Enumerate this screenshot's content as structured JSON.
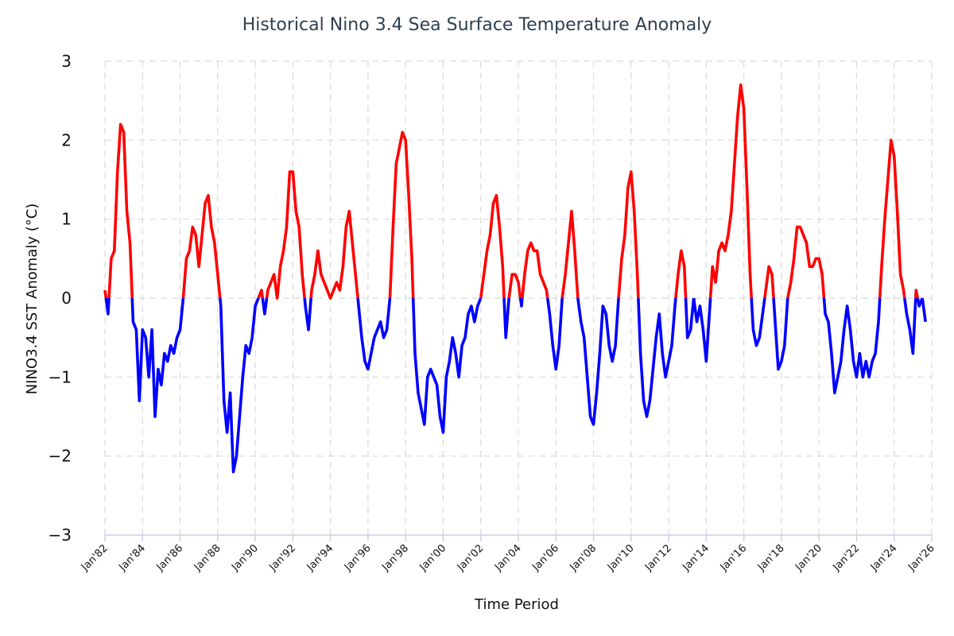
{
  "chart_data": {
    "type": "line",
    "title": "Historical Nino 3.4 Sea Surface Temperature Anomaly",
    "xlabel": "Time Period",
    "ylabel": "NINO3.4 SST Anomaly (°C)",
    "ylim": [
      -3,
      3
    ],
    "xlim": [
      "1982-01",
      "2026-01"
    ],
    "yticks": [
      3,
      2,
      1,
      0,
      -1,
      -2,
      -3
    ],
    "ytick_labels": [
      "3",
      "2",
      "1",
      "0",
      "−1",
      "−2",
      "−3"
    ],
    "xticks": [
      "1982-01",
      "1984-01",
      "1986-01",
      "1988-01",
      "1990-01",
      "1992-01",
      "1994-01",
      "1996-01",
      "1998-01",
      "2000-01",
      "2002-01",
      "2004-01",
      "2006-01",
      "2008-01",
      "2010-01",
      "2012-01",
      "2014-01",
      "2016-01",
      "2018-01",
      "2020-01",
      "2022-01",
      "2024-01",
      "2026-01"
    ],
    "xtick_labels": [
      "Jan'82",
      "Jan'84",
      "Jan'86",
      "Jan'88",
      "Jan'90",
      "Jan'92",
      "Jan'94",
      "Jan'96",
      "Jan'98",
      "Jan'00",
      "Jan'02",
      "Jan'04",
      "Jan'06",
      "Jan'08",
      "Jan'10",
      "Jan'12",
      "Jan'14",
      "Jan'16",
      "Jan'18",
      "Jan'20",
      "Jan'22",
      "Jan'24",
      "Jan'26"
    ],
    "grid": true,
    "positive_color": "#ff0000",
    "negative_color": "#0000ff",
    "points": [
      [
        "1982-01",
        0.1
      ],
      [
        "1982-03",
        -0.2
      ],
      [
        "1982-05",
        0.5
      ],
      [
        "1982-07",
        0.6
      ],
      [
        "1982-09",
        1.6
      ],
      [
        "1982-11",
        2.2
      ],
      [
        "1983-01",
        2.1
      ],
      [
        "1983-03",
        1.1
      ],
      [
        "1983-05",
        0.7
      ],
      [
        "1983-07",
        -0.3
      ],
      [
        "1983-09",
        -0.4
      ],
      [
        "1983-11",
        -1.3
      ],
      [
        "1984-01",
        -0.4
      ],
      [
        "1984-03",
        -0.5
      ],
      [
        "1984-05",
        -1.0
      ],
      [
        "1984-07",
        -0.4
      ],
      [
        "1984-09",
        -1.5
      ],
      [
        "1984-11",
        -0.9
      ],
      [
        "1985-01",
        -1.1
      ],
      [
        "1985-03",
        -0.7
      ],
      [
        "1985-05",
        -0.8
      ],
      [
        "1985-07",
        -0.6
      ],
      [
        "1985-09",
        -0.7
      ],
      [
        "1985-11",
        -0.5
      ],
      [
        "1986-01",
        -0.4
      ],
      [
        "1986-03",
        0.0
      ],
      [
        "1986-05",
        0.5
      ],
      [
        "1986-07",
        0.6
      ],
      [
        "1986-09",
        0.9
      ],
      [
        "1986-11",
        0.8
      ],
      [
        "1987-01",
        0.4
      ],
      [
        "1987-03",
        0.8
      ],
      [
        "1987-05",
        1.2
      ],
      [
        "1987-07",
        1.3
      ],
      [
        "1987-09",
        0.9
      ],
      [
        "1987-11",
        0.7
      ],
      [
        "1988-01",
        0.3
      ],
      [
        "1988-03",
        -0.1
      ],
      [
        "1988-05",
        -1.3
      ],
      [
        "1988-07",
        -1.7
      ],
      [
        "1988-09",
        -1.2
      ],
      [
        "1988-11",
        -2.2
      ],
      [
        "1989-01",
        -2.0
      ],
      [
        "1989-03",
        -1.5
      ],
      [
        "1989-05",
        -1.0
      ],
      [
        "1989-07",
        -0.6
      ],
      [
        "1989-09",
        -0.7
      ],
      [
        "1989-11",
        -0.5
      ],
      [
        "1990-01",
        -0.1
      ],
      [
        "1990-03",
        0.0
      ],
      [
        "1990-05",
        0.1
      ],
      [
        "1990-07",
        -0.2
      ],
      [
        "1990-09",
        0.1
      ],
      [
        "1990-11",
        0.2
      ],
      [
        "1991-01",
        0.3
      ],
      [
        "1991-03",
        0.0
      ],
      [
        "1991-05",
        0.4
      ],
      [
        "1991-07",
        0.6
      ],
      [
        "1991-09",
        0.9
      ],
      [
        "1991-11",
        1.6
      ],
      [
        "1992-01",
        1.6
      ],
      [
        "1992-03",
        1.1
      ],
      [
        "1992-05",
        0.9
      ],
      [
        "1992-07",
        0.3
      ],
      [
        "1992-09",
        -0.1
      ],
      [
        "1992-11",
        -0.4
      ],
      [
        "1993-01",
        0.1
      ],
      [
        "1993-03",
        0.3
      ],
      [
        "1993-05",
        0.6
      ],
      [
        "1993-07",
        0.3
      ],
      [
        "1993-09",
        0.2
      ],
      [
        "1993-11",
        0.1
      ],
      [
        "1994-01",
        0.0
      ],
      [
        "1994-03",
        0.1
      ],
      [
        "1994-05",
        0.2
      ],
      [
        "1994-07",
        0.1
      ],
      [
        "1994-09",
        0.4
      ],
      [
        "1994-11",
        0.9
      ],
      [
        "1995-01",
        1.1
      ],
      [
        "1995-03",
        0.7
      ],
      [
        "1995-05",
        0.3
      ],
      [
        "1995-07",
        -0.1
      ],
      [
        "1995-09",
        -0.5
      ],
      [
        "1995-11",
        -0.8
      ],
      [
        "1996-01",
        -0.9
      ],
      [
        "1996-03",
        -0.7
      ],
      [
        "1996-05",
        -0.5
      ],
      [
        "1996-07",
        -0.4
      ],
      [
        "1996-09",
        -0.3
      ],
      [
        "1996-11",
        -0.5
      ],
      [
        "1997-01",
        -0.4
      ],
      [
        "1997-03",
        0.0
      ],
      [
        "1997-05",
        0.9
      ],
      [
        "1997-07",
        1.7
      ],
      [
        "1997-09",
        1.9
      ],
      [
        "1997-11",
        2.1
      ],
      [
        "1998-01",
        2.0
      ],
      [
        "1998-03",
        1.3
      ],
      [
        "1998-05",
        0.5
      ],
      [
        "1998-07",
        -0.7
      ],
      [
        "1998-09",
        -1.2
      ],
      [
        "1998-11",
        -1.4
      ],
      [
        "1999-01",
        -1.6
      ],
      [
        "1999-03",
        -1.0
      ],
      [
        "1999-05",
        -0.9
      ],
      [
        "1999-07",
        -1.0
      ],
      [
        "1999-09",
        -1.1
      ],
      [
        "1999-11",
        -1.5
      ],
      [
        "2000-01",
        -1.7
      ],
      [
        "2000-03",
        -1.0
      ],
      [
        "2000-05",
        -0.8
      ],
      [
        "2000-07",
        -0.5
      ],
      [
        "2000-09",
        -0.7
      ],
      [
        "2000-11",
        -1.0
      ],
      [
        "2001-01",
        -0.6
      ],
      [
        "2001-03",
        -0.5
      ],
      [
        "2001-05",
        -0.2
      ],
      [
        "2001-07",
        -0.1
      ],
      [
        "2001-09",
        -0.3
      ],
      [
        "2001-11",
        -0.1
      ],
      [
        "2002-01",
        0.0
      ],
      [
        "2002-03",
        0.3
      ],
      [
        "2002-05",
        0.6
      ],
      [
        "2002-07",
        0.8
      ],
      [
        "2002-09",
        1.2
      ],
      [
        "2002-11",
        1.3
      ],
      [
        "2003-01",
        0.9
      ],
      [
        "2003-03",
        0.4
      ],
      [
        "2003-05",
        -0.5
      ],
      [
        "2003-07",
        0.0
      ],
      [
        "2003-09",
        0.3
      ],
      [
        "2003-11",
        0.3
      ],
      [
        "2004-01",
        0.2
      ],
      [
        "2004-03",
        -0.1
      ],
      [
        "2004-05",
        0.3
      ],
      [
        "2004-07",
        0.6
      ],
      [
        "2004-09",
        0.7
      ],
      [
        "2004-11",
        0.6
      ],
      [
        "2005-01",
        0.6
      ],
      [
        "2005-03",
        0.3
      ],
      [
        "2005-05",
        0.2
      ],
      [
        "2005-07",
        0.1
      ],
      [
        "2005-09",
        -0.2
      ],
      [
        "2005-11",
        -0.6
      ],
      [
        "2006-01",
        -0.9
      ],
      [
        "2006-03",
        -0.6
      ],
      [
        "2006-05",
        0.0
      ],
      [
        "2006-07",
        0.3
      ],
      [
        "2006-09",
        0.7
      ],
      [
        "2006-11",
        1.1
      ],
      [
        "2007-01",
        0.6
      ],
      [
        "2007-03",
        0.0
      ],
      [
        "2007-05",
        -0.3
      ],
      [
        "2007-07",
        -0.5
      ],
      [
        "2007-09",
        -1.0
      ],
      [
        "2007-11",
        -1.5
      ],
      [
        "2008-01",
        -1.6
      ],
      [
        "2008-03",
        -1.2
      ],
      [
        "2008-05",
        -0.7
      ],
      [
        "2008-07",
        -0.1
      ],
      [
        "2008-09",
        -0.2
      ],
      [
        "2008-11",
        -0.6
      ],
      [
        "2009-01",
        -0.8
      ],
      [
        "2009-03",
        -0.6
      ],
      [
        "2009-05",
        0.0
      ],
      [
        "2009-07",
        0.5
      ],
      [
        "2009-09",
        0.8
      ],
      [
        "2009-11",
        1.4
      ],
      [
        "2010-01",
        1.6
      ],
      [
        "2010-03",
        1.1
      ],
      [
        "2010-05",
        0.3
      ],
      [
        "2010-07",
        -0.7
      ],
      [
        "2010-09",
        -1.3
      ],
      [
        "2010-11",
        -1.5
      ],
      [
        "2011-01",
        -1.3
      ],
      [
        "2011-03",
        -0.9
      ],
      [
        "2011-05",
        -0.5
      ],
      [
        "2011-07",
        -0.2
      ],
      [
        "2011-09",
        -0.7
      ],
      [
        "2011-11",
        -1.0
      ],
      [
        "2012-01",
        -0.8
      ],
      [
        "2012-03",
        -0.6
      ],
      [
        "2012-05",
        -0.1
      ],
      [
        "2012-07",
        0.3
      ],
      [
        "2012-09",
        0.6
      ],
      [
        "2012-11",
        0.4
      ],
      [
        "2013-01",
        -0.5
      ],
      [
        "2013-03",
        -0.4
      ],
      [
        "2013-05",
        0.0
      ],
      [
        "2013-07",
        -0.3
      ],
      [
        "2013-09",
        -0.1
      ],
      [
        "2013-11",
        -0.4
      ],
      [
        "2014-01",
        -0.8
      ],
      [
        "2014-03",
        -0.2
      ],
      [
        "2014-05",
        0.4
      ],
      [
        "2014-07",
        0.2
      ],
      [
        "2014-09",
        0.6
      ],
      [
        "2014-11",
        0.7
      ],
      [
        "2015-01",
        0.6
      ],
      [
        "2015-03",
        0.8
      ],
      [
        "2015-05",
        1.1
      ],
      [
        "2015-07",
        1.7
      ],
      [
        "2015-09",
        2.3
      ],
      [
        "2015-11",
        2.7
      ],
      [
        "2016-01",
        2.4
      ],
      [
        "2016-03",
        1.4
      ],
      [
        "2016-05",
        0.3
      ],
      [
        "2016-07",
        -0.4
      ],
      [
        "2016-09",
        -0.6
      ],
      [
        "2016-11",
        -0.5
      ],
      [
        "2017-01",
        -0.2
      ],
      [
        "2017-03",
        0.1
      ],
      [
        "2017-05",
        0.4
      ],
      [
        "2017-07",
        0.3
      ],
      [
        "2017-09",
        -0.3
      ],
      [
        "2017-11",
        -0.9
      ],
      [
        "2018-01",
        -0.8
      ],
      [
        "2018-03",
        -0.6
      ],
      [
        "2018-05",
        0.0
      ],
      [
        "2018-07",
        0.2
      ],
      [
        "2018-09",
        0.5
      ],
      [
        "2018-11",
        0.9
      ],
      [
        "2019-01",
        0.9
      ],
      [
        "2019-03",
        0.8
      ],
      [
        "2019-05",
        0.7
      ],
      [
        "2019-07",
        0.4
      ],
      [
        "2019-09",
        0.4
      ],
      [
        "2019-11",
        0.5
      ],
      [
        "2020-01",
        0.5
      ],
      [
        "2020-03",
        0.3
      ],
      [
        "2020-05",
        -0.2
      ],
      [
        "2020-07",
        -0.3
      ],
      [
        "2020-09",
        -0.7
      ],
      [
        "2020-11",
        -1.2
      ],
      [
        "2021-01",
        -1.0
      ],
      [
        "2021-03",
        -0.8
      ],
      [
        "2021-05",
        -0.4
      ],
      [
        "2021-07",
        -0.1
      ],
      [
        "2021-09",
        -0.4
      ],
      [
        "2021-11",
        -0.8
      ],
      [
        "2022-01",
        -1.0
      ],
      [
        "2022-03",
        -0.7
      ],
      [
        "2022-05",
        -1.0
      ],
      [
        "2022-07",
        -0.8
      ],
      [
        "2022-09",
        -1.0
      ],
      [
        "2022-11",
        -0.8
      ],
      [
        "2023-01",
        -0.7
      ],
      [
        "2023-03",
        -0.3
      ],
      [
        "2023-05",
        0.4
      ],
      [
        "2023-07",
        1.0
      ],
      [
        "2023-09",
        1.5
      ],
      [
        "2023-11",
        2.0
      ],
      [
        "2024-01",
        1.8
      ],
      [
        "2024-03",
        1.1
      ],
      [
        "2024-05",
        0.3
      ],
      [
        "2024-07",
        0.1
      ],
      [
        "2024-09",
        -0.2
      ],
      [
        "2024-11",
        -0.4
      ],
      [
        "2025-01",
        -0.7
      ],
      [
        "2025-03",
        0.1
      ],
      [
        "2025-05",
        -0.1
      ],
      [
        "2025-07",
        0.0
      ],
      [
        "2025-09",
        -0.3
      ]
    ]
  }
}
